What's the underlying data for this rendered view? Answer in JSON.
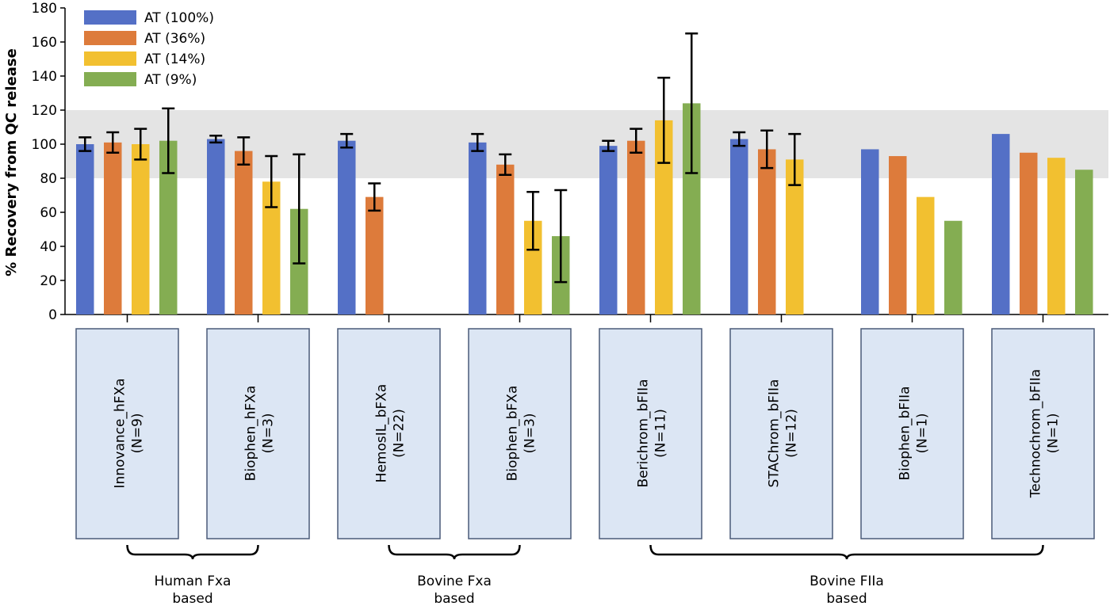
{
  "chart_data": {
    "type": "bar",
    "ylabel": "% Recovery from QC release",
    "ylim": [
      0,
      180
    ],
    "yticks": [
      0,
      20,
      40,
      60,
      80,
      100,
      120,
      140,
      160,
      180
    ],
    "reference_band": [
      80,
      120
    ],
    "legend_placement": "top-left",
    "colors": [
      "#5470c6",
      "#dd7b3b",
      "#f2c030",
      "#84ad52"
    ],
    "categories": [
      {
        "name": "Innovance_hFXa",
        "n": "(N=9)"
      },
      {
        "name": "Biophen_hFXa",
        "n": "(N=3)"
      },
      {
        "name": "HemosIL_bFXa",
        "n": "(N=22)"
      },
      {
        "name": "Biophen_bFXa",
        "n": "(N=3)"
      },
      {
        "name": "Berichrom_bFIIa",
        "n": "(N=11)"
      },
      {
        "name": "STAChrom_bFIIa",
        "n": "(N=12)"
      },
      {
        "name": "Biophen_bFIIa",
        "n": "(N=1)"
      },
      {
        "name": "Technochrom_bFIIa",
        "n": "(N=1)"
      }
    ],
    "series": [
      {
        "name": "AT (100%)",
        "values": [
          100,
          103,
          102,
          101,
          99,
          103,
          97,
          106
        ],
        "errors": [
          4,
          2,
          4,
          5,
          3,
          4,
          null,
          null
        ]
      },
      {
        "name": "AT (36%)",
        "values": [
          101,
          96,
          69,
          88,
          102,
          97,
          93,
          95
        ],
        "errors": [
          6,
          8,
          8,
          6,
          7,
          11,
          null,
          null
        ]
      },
      {
        "name": "AT (14%)",
        "values": [
          100,
          78,
          null,
          55,
          114,
          91,
          69,
          92
        ],
        "errors": [
          9,
          15,
          null,
          17,
          25,
          15,
          null,
          null
        ]
      },
      {
        "name": "AT (9%)",
        "values": [
          102,
          62,
          null,
          46,
          124,
          null,
          55,
          85
        ],
        "errors": [
          19,
          32,
          null,
          27,
          41,
          null,
          null,
          null
        ]
      }
    ],
    "groups": [
      {
        "label_line1": "Human Fxa",
        "label_line2": "based",
        "from": 0,
        "to": 1
      },
      {
        "label_line1": "Bovine Fxa",
        "label_line2": "based",
        "from": 2,
        "to": 3
      },
      {
        "label_line1": "Bovine FIIa",
        "label_line2": "based",
        "from": 4,
        "to": 7
      }
    ]
  }
}
